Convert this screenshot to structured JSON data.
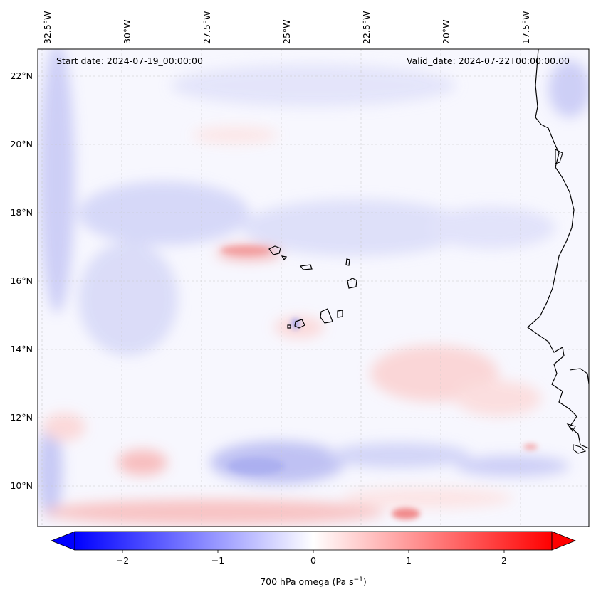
{
  "map": {
    "start_date": "Start date: 2024-07-19_00:00:00",
    "valid_date": "Valid_date: 2024-07-22T00:00:00.00",
    "lon_labels": [
      "32.5°W",
      "30°W",
      "27.5°W",
      "25°W",
      "22.5°W",
      "20°W",
      "17.5°W"
    ],
    "lat_labels": [
      "22°N",
      "20°N",
      "18°N",
      "16°N",
      "14°N",
      "12°N",
      "10°N"
    ]
  },
  "colorbar": {
    "ticks": [
      "−2",
      "−1",
      "0",
      "1",
      "2"
    ],
    "label_main": "700 hPa omega (Pa s",
    "label_sup": "−1",
    "label_end": ")",
    "colors": {
      "neg": "#0000ff",
      "mid": "#ffffff",
      "pos": "#ff0000"
    }
  }
}
